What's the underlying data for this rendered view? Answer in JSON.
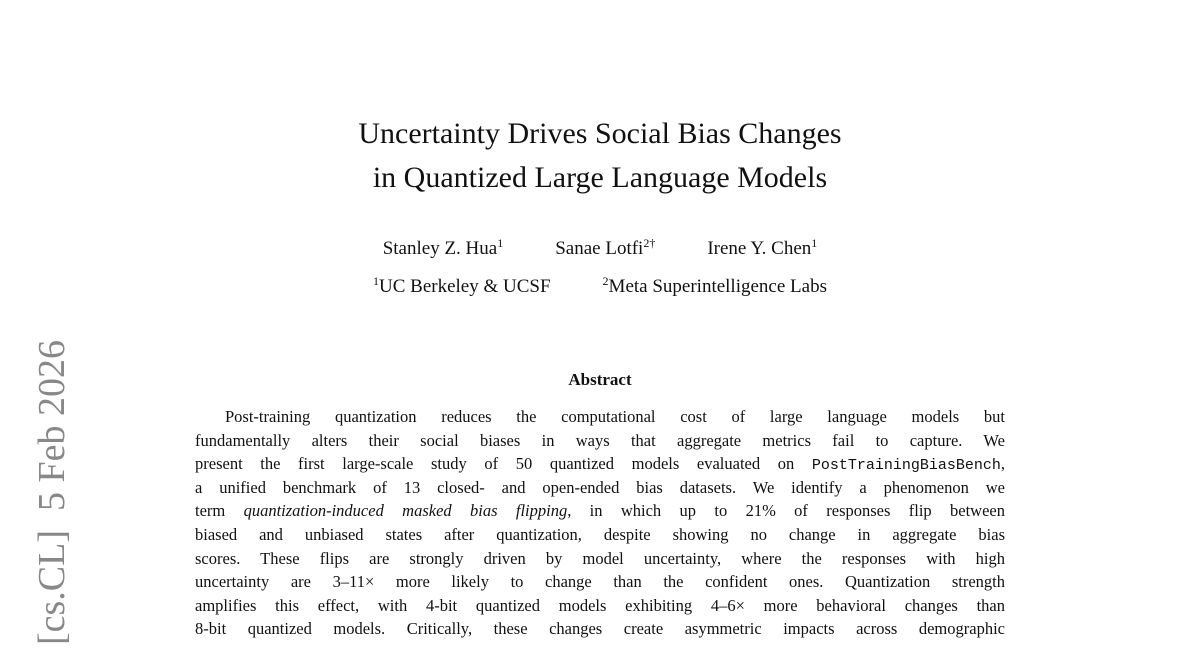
{
  "side_stamp": "[cs.CL]  5 Feb 2026",
  "header": {
    "title_lines": [
      "Uncertainty Drives Social Bias Changes",
      "in Quantized Large Language Models"
    ]
  },
  "authors": [
    {
      "name": "Stanley Z. Hua",
      "mark": "1"
    },
    {
      "name": "Sanae Lotfi",
      "mark": "2†"
    },
    {
      "name": "Irene Y. Chen",
      "mark": "1"
    }
  ],
  "affiliations": [
    {
      "mark": "1",
      "name": "UC Berkeley & UCSF"
    },
    {
      "mark": "2",
      "name": "Meta Superintelligence Labs"
    }
  ],
  "abstract": {
    "heading": "Abstract",
    "lines": [
      [
        {
          "text": "Post-training quantization reduces the computational cost of large language models but"
        }
      ],
      [
        {
          "text": "fundamentally alters their social biases in ways that aggregate metrics fail to capture. We"
        }
      ],
      [
        {
          "text": "present the first large-scale study of 50 quantized models evaluated on "
        },
        {
          "text": "PostTrainingBiasBench",
          "style": "mono"
        },
        {
          "text": ","
        }
      ],
      [
        {
          "text": "a unified benchmark of 13 closed- and open-ended bias datasets. We identify a phenomenon we"
        }
      ],
      [
        {
          "text": "term "
        },
        {
          "text": "quantization-induced masked bias flipping",
          "style": "italic"
        },
        {
          "text": ", in which up to 21% of responses flip between"
        }
      ],
      [
        {
          "text": "biased and unbiased states after quantization, despite showing no change in aggregate bias"
        }
      ],
      [
        {
          "text": "scores. These flips are strongly driven by model uncertainty, where the responses with high"
        }
      ],
      [
        {
          "text": "uncertainty are 3–11× more likely to change than the confident ones. Quantization strength"
        }
      ],
      [
        {
          "text": "amplifies this effect, with 4-bit quantized models exhibiting 4–6× more behavioral changes than"
        }
      ],
      [
        {
          "text": "8-bit quantized models. Critically, these changes create asymmetric impacts across demographic"
        }
      ]
    ]
  }
}
